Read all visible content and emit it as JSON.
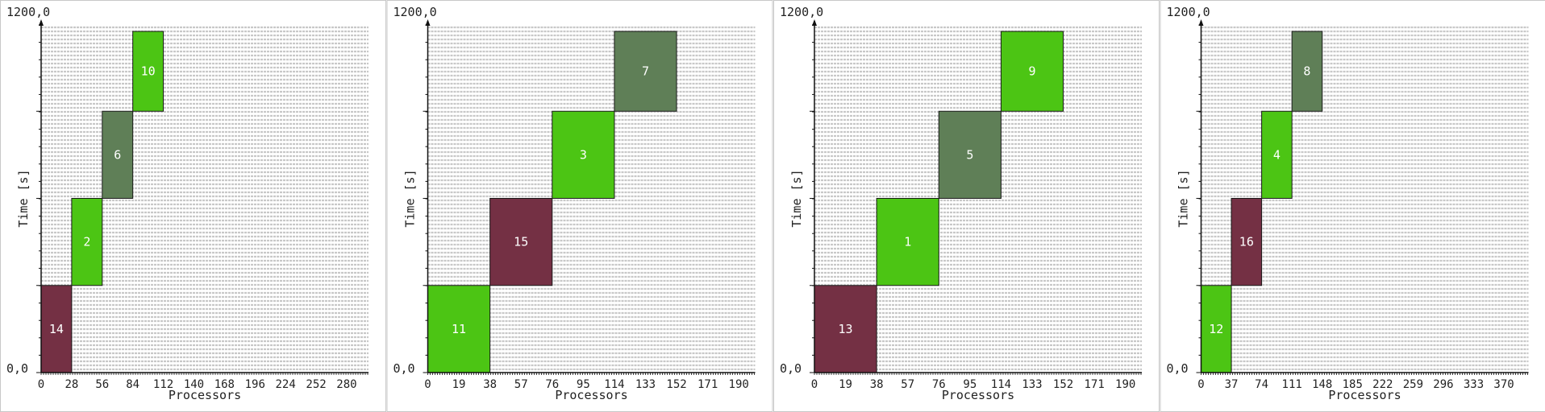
{
  "palette": {
    "green": "#4cc514",
    "maroon": "#743044",
    "olive": "#5f7f57",
    "stripe": "#c8c8c8"
  },
  "chart_data": [
    {
      "type": "gantt",
      "xlabel": "Processors",
      "ylabel": "Time [s]",
      "y_min_label": "0,0",
      "y_max_label": "1200,0",
      "ylim": [
        0,
        1200
      ],
      "xlim": [
        0,
        300
      ],
      "x_ticks": [
        0,
        28,
        56,
        84,
        112,
        140,
        168,
        196,
        224,
        252,
        280
      ],
      "grid": true,
      "jobs": [
        {
          "label": "14",
          "x0": 0,
          "x1": 28,
          "t0": 0,
          "t1": 300,
          "color": "maroon"
        },
        {
          "label": "2",
          "x0": 28,
          "x1": 56,
          "t0": 300,
          "t1": 600,
          "color": "green"
        },
        {
          "label": "6",
          "x0": 56,
          "x1": 84,
          "t0": 600,
          "t1": 900,
          "color": "olive"
        },
        {
          "label": "10",
          "x0": 84,
          "x1": 112,
          "t0": 900,
          "t1": 1175,
          "color": "green"
        }
      ]
    },
    {
      "type": "gantt",
      "xlabel": "Processors",
      "ylabel": "Time [s]",
      "y_min_label": "0,0",
      "y_max_label": "1200,0",
      "ylim": [
        0,
        1200
      ],
      "xlim": [
        0,
        200
      ],
      "x_ticks": [
        0,
        19,
        38,
        57,
        76,
        95,
        114,
        133,
        152,
        171,
        190
      ],
      "grid": true,
      "jobs": [
        {
          "label": "11",
          "x0": 0,
          "x1": 38,
          "t0": 0,
          "t1": 300,
          "color": "green"
        },
        {
          "label": "15",
          "x0": 38,
          "x1": 76,
          "t0": 300,
          "t1": 600,
          "color": "maroon"
        },
        {
          "label": "3",
          "x0": 76,
          "x1": 114,
          "t0": 600,
          "t1": 900,
          "color": "green"
        },
        {
          "label": "7",
          "x0": 114,
          "x1": 152,
          "t0": 900,
          "t1": 1175,
          "color": "olive"
        }
      ]
    },
    {
      "type": "gantt",
      "xlabel": "Processors",
      "ylabel": "Time [s]",
      "y_min_label": "0,0",
      "y_max_label": "1200,0",
      "ylim": [
        0,
        1200
      ],
      "xlim": [
        0,
        200
      ],
      "x_ticks": [
        0,
        19,
        38,
        57,
        76,
        95,
        114,
        133,
        152,
        171,
        190
      ],
      "grid": true,
      "jobs": [
        {
          "label": "13",
          "x0": 0,
          "x1": 38,
          "t0": 0,
          "t1": 300,
          "color": "maroon"
        },
        {
          "label": "1",
          "x0": 38,
          "x1": 76,
          "t0": 300,
          "t1": 600,
          "color": "green"
        },
        {
          "label": "5",
          "x0": 76,
          "x1": 114,
          "t0": 600,
          "t1": 900,
          "color": "olive"
        },
        {
          "label": "9",
          "x0": 114,
          "x1": 152,
          "t0": 900,
          "t1": 1175,
          "color": "green"
        }
      ]
    },
    {
      "type": "gantt",
      "xlabel": "Processors",
      "ylabel": "Time [s]",
      "y_min_label": "0,0",
      "y_max_label": "1200,0",
      "ylim": [
        0,
        1200
      ],
      "xlim": [
        0,
        400
      ],
      "x_ticks": [
        0,
        37,
        74,
        111,
        148,
        185,
        222,
        259,
        296,
        333,
        370
      ],
      "grid": true,
      "jobs": [
        {
          "label": "12",
          "x0": 0,
          "x1": 37,
          "t0": 0,
          "t1": 300,
          "color": "green"
        },
        {
          "label": "16",
          "x0": 37,
          "x1": 74,
          "t0": 300,
          "t1": 600,
          "color": "maroon"
        },
        {
          "label": "4",
          "x0": 74,
          "x1": 111,
          "t0": 600,
          "t1": 900,
          "color": "green"
        },
        {
          "label": "8",
          "x0": 111,
          "x1": 148,
          "t0": 900,
          "t1": 1175,
          "color": "olive"
        }
      ]
    }
  ]
}
